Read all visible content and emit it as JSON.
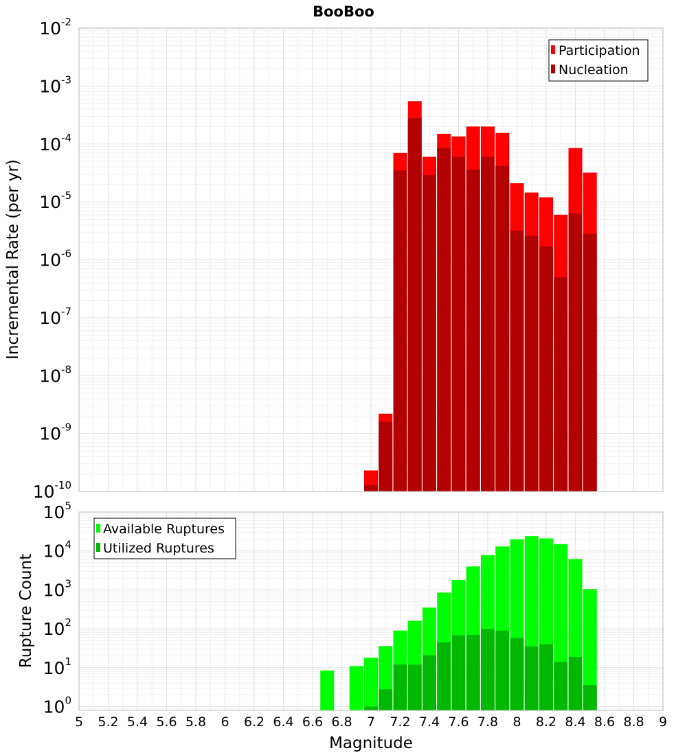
{
  "figure": {
    "title": "BooBoo"
  },
  "chart_data": [
    {
      "type": "bar",
      "title": "BooBoo",
      "xlabel": "",
      "ylabel": "Incremental Rate (per yr)",
      "xlim": [
        5,
        9
      ],
      "ylim": [
        1e-10,
        0.01
      ],
      "yscale": "log",
      "grid": true,
      "legend_position": "top-right",
      "bar_mode": "overlay",
      "y_ticks": [
        {
          "base": "10",
          "exp": "-10"
        },
        {
          "base": "10",
          "exp": "-9"
        },
        {
          "base": "10",
          "exp": "-8"
        },
        {
          "base": "10",
          "exp": "-7"
        },
        {
          "base": "10",
          "exp": "-6"
        },
        {
          "base": "10",
          "exp": "-5"
        },
        {
          "base": "10",
          "exp": "-4"
        },
        {
          "base": "10",
          "exp": "-3"
        },
        {
          "base": "10",
          "exp": "-2"
        }
      ],
      "x": [
        7.0,
        7.1,
        7.2,
        7.3,
        7.4,
        7.5,
        7.6,
        7.7,
        7.8,
        7.9,
        8.0,
        8.1,
        8.2,
        8.3,
        8.4,
        8.5
      ],
      "series": [
        {
          "name": "Participation",
          "color": "#ff0000",
          "values": [
            2.3e-10,
            2.2e-09,
            7e-05,
            0.00055,
            6e-05,
            0.00015,
            0.000135,
            0.0002,
            0.0002,
            0.000155,
            2.1e-05,
            1.45e-05,
            1.2e-05,
            6e-06,
            8.5e-05,
            3.2e-05
          ]
        },
        {
          "name": "Nucleation",
          "color": "#b30000",
          "values": [
            1.3e-10,
            1.6e-09,
            3.5e-05,
            0.00028,
            2.9e-05,
            8.5e-05,
            6e-05,
            3.6e-05,
            6e-05,
            4.2e-05,
            3.2e-06,
            2.6e-06,
            1.7e-06,
            5e-07,
            6.3e-06,
            2.8e-06
          ]
        }
      ]
    },
    {
      "type": "bar",
      "title": "",
      "xlabel": "Magnitude",
      "ylabel": "Rupture Count",
      "xlim": [
        5,
        9
      ],
      "ylim": [
        0.8,
        100000
      ],
      "yscale": "log",
      "grid": true,
      "legend_position": "top-left",
      "bar_mode": "overlay",
      "y_ticks": [
        {
          "base": "10",
          "exp": "0"
        },
        {
          "base": "10",
          "exp": "1"
        },
        {
          "base": "10",
          "exp": "2"
        },
        {
          "base": "10",
          "exp": "3"
        },
        {
          "base": "10",
          "exp": "4"
        },
        {
          "base": "10",
          "exp": "5"
        }
      ],
      "x_ticks": [
        "5",
        "5.2",
        "5.4",
        "5.6",
        "5.8",
        "6",
        "6.2",
        "6.4",
        "6.6",
        "6.8",
        "7",
        "7.2",
        "7.4",
        "7.6",
        "7.8",
        "8",
        "8.2",
        "8.4",
        "8.6",
        "8.8",
        "9"
      ],
      "x": [
        6.7,
        6.8,
        6.9,
        7.0,
        7.1,
        7.2,
        7.3,
        7.4,
        7.5,
        7.6,
        7.7,
        7.8,
        7.9,
        8.0,
        8.1,
        8.2,
        8.3,
        8.4,
        8.5
      ],
      "series": [
        {
          "name": "Available Ruptures",
          "color": "#00ff00",
          "values": [
            8.5,
            0,
            11,
            18,
            36,
            90,
            160,
            350,
            850,
            1800,
            4000,
            7800,
            13000,
            20000,
            24000,
            21000,
            15000,
            6200,
            1050
          ]
        },
        {
          "name": "Utilized Ruptures",
          "color": "#00b800",
          "values": [
            0,
            0,
            0,
            1,
            2.8,
            12,
            12,
            21,
            45,
            68,
            70,
            100,
            90,
            58,
            35,
            40,
            14,
            19,
            3.6
          ]
        }
      ]
    }
  ]
}
